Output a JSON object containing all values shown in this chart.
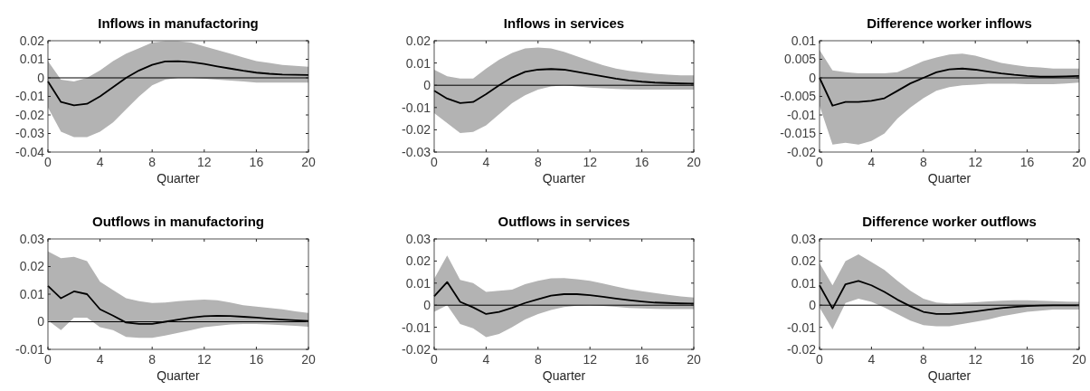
{
  "chart_data": [
    {
      "type": "line",
      "title": "Inflows in manufactoring",
      "xlabel": "Quarter",
      "x": [
        0,
        1,
        2,
        3,
        4,
        5,
        6,
        7,
        8,
        9,
        10,
        11,
        12,
        13,
        14,
        15,
        16,
        17,
        18,
        19,
        20
      ],
      "xlim": [
        0,
        20
      ],
      "xticks": [
        0,
        4,
        8,
        12,
        16,
        20
      ],
      "ylim": [
        -0.04,
        0.02
      ],
      "yticks": [
        -0.04,
        -0.03,
        -0.02,
        -0.01,
        0,
        0.01,
        0.02
      ],
      "grid": false,
      "ref_lines": [
        {
          "axis": "y",
          "value": 0,
          "color": "#000000"
        }
      ],
      "series": [
        {
          "color": "#000000",
          "values": [
            -0.002,
            -0.013,
            -0.0148,
            -0.014,
            -0.01,
            -0.005,
            0,
            0.004,
            0.007,
            0.0088,
            0.009,
            0.0085,
            0.0075,
            0.0062,
            0.005,
            0.0038,
            0.0028,
            0.0022,
            0.0018,
            0.0016,
            0.0015
          ],
          "lower": [
            -0.016,
            -0.029,
            -0.032,
            -0.032,
            -0.029,
            -0.024,
            -0.017,
            -0.01,
            -0.004,
            -0.001,
            0,
            0,
            -0.0005,
            -0.001,
            -0.0015,
            -0.002,
            -0.0025,
            -0.0025,
            -0.0025,
            -0.0025,
            -0.0025
          ],
          "upper": [
            0.009,
            -0.001,
            -0.002,
            0,
            0.004,
            0.009,
            0.013,
            0.016,
            0.019,
            0.0198,
            0.0198,
            0.019,
            0.017,
            0.015,
            0.013,
            0.011,
            0.009,
            0.008,
            0.007,
            0.0065,
            0.006
          ]
        }
      ]
    },
    {
      "type": "line",
      "title": "Inflows in services",
      "xlabel": "Quarter",
      "x": [
        0,
        1,
        2,
        3,
        4,
        5,
        6,
        7,
        8,
        9,
        10,
        11,
        12,
        13,
        14,
        15,
        16,
        17,
        18,
        19,
        20
      ],
      "xlim": [
        0,
        20
      ],
      "xticks": [
        0,
        4,
        8,
        12,
        16,
        20
      ],
      "ylim": [
        -0.03,
        0.02
      ],
      "yticks": [
        -0.03,
        -0.02,
        -0.01,
        0,
        0.01,
        0.02
      ],
      "grid": false,
      "ref_lines": [
        {
          "axis": "y",
          "value": 0,
          "color": "#000000"
        }
      ],
      "series": [
        {
          "color": "#000000",
          "values": [
            -0.0025,
            -0.006,
            -0.008,
            -0.0075,
            -0.004,
            0,
            0.0035,
            0.006,
            0.007,
            0.0073,
            0.007,
            0.006,
            0.005,
            0.004,
            0.003,
            0.0022,
            0.0016,
            0.0012,
            0.001,
            0.0008,
            0.0007
          ],
          "lower": [
            -0.0125,
            -0.017,
            -0.0215,
            -0.021,
            -0.018,
            -0.013,
            -0.008,
            -0.0045,
            -0.002,
            -0.0005,
            0,
            -0.0005,
            -0.001,
            -0.0013,
            -0.0016,
            -0.0018,
            -0.002,
            -0.002,
            -0.002,
            -0.002,
            -0.002
          ],
          "upper": [
            0.007,
            0.004,
            0.003,
            0.003,
            0.0075,
            0.0115,
            0.0145,
            0.0165,
            0.017,
            0.0165,
            0.015,
            0.013,
            0.011,
            0.009,
            0.0075,
            0.0065,
            0.0058,
            0.0052,
            0.0048,
            0.0045,
            0.0045
          ]
        }
      ]
    },
    {
      "type": "line",
      "title": "Difference worker inflows",
      "xlabel": "Quarter",
      "x": [
        0,
        1,
        2,
        3,
        4,
        5,
        6,
        7,
        8,
        9,
        10,
        11,
        12,
        13,
        14,
        15,
        16,
        17,
        18,
        19,
        20
      ],
      "xlim": [
        0,
        20
      ],
      "xticks": [
        0,
        4,
        8,
        12,
        16,
        20
      ],
      "ylim": [
        -0.02,
        0.01
      ],
      "yticks": [
        -0.02,
        -0.015,
        -0.01,
        -0.005,
        0,
        0.005,
        0.01
      ],
      "grid": false,
      "ref_lines": [
        {
          "axis": "y",
          "value": 0,
          "color": "#000000"
        }
      ],
      "series": [
        {
          "color": "#000000",
          "values": [
            0,
            -0.0075,
            -0.0065,
            -0.0065,
            -0.0062,
            -0.0055,
            -0.0035,
            -0.0015,
            0,
            0.0015,
            0.0023,
            0.0025,
            0.0022,
            0.0017,
            0.0012,
            0.0008,
            0.0005,
            0.0003,
            0.0003,
            0.0004,
            0.0005
          ],
          "lower": [
            -0.0075,
            -0.018,
            -0.0175,
            -0.018,
            -0.017,
            -0.015,
            -0.011,
            -0.008,
            -0.0055,
            -0.0035,
            -0.0025,
            -0.002,
            -0.0018,
            -0.0016,
            -0.0016,
            -0.0016,
            -0.0017,
            -0.0017,
            -0.0017,
            -0.0015,
            -0.0013
          ],
          "upper": [
            0.0075,
            0.002,
            0.0015,
            0.0012,
            0.0012,
            0.0012,
            0.0015,
            0.003,
            0.0045,
            0.0055,
            0.0063,
            0.0065,
            0.006,
            0.005,
            0.004,
            0.0035,
            0.003,
            0.0028,
            0.0025,
            0.0025,
            0.0025
          ]
        }
      ]
    },
    {
      "type": "line",
      "title": "Outflows in manufactoring",
      "xlabel": "Quarter",
      "x": [
        0,
        1,
        2,
        3,
        4,
        5,
        6,
        7,
        8,
        9,
        10,
        11,
        12,
        13,
        14,
        15,
        16,
        17,
        18,
        19,
        20
      ],
      "xlim": [
        0,
        20
      ],
      "xticks": [
        0,
        4,
        8,
        12,
        16,
        20
      ],
      "ylim": [
        -0.01,
        0.03
      ],
      "yticks": [
        -0.01,
        0,
        0.01,
        0.02,
        0.03
      ],
      "grid": false,
      "ref_lines": [
        {
          "axis": "y",
          "value": 0,
          "color": "#000000"
        }
      ],
      "series": [
        {
          "color": "#000000",
          "values": [
            0.013,
            0.0085,
            0.011,
            0.01,
            0.0045,
            0.0022,
            -0.0003,
            -0.0008,
            -0.0008,
            0,
            0.0008,
            0.0015,
            0.002,
            0.0022,
            0.0021,
            0.0018,
            0.0015,
            0.0011,
            0.0008,
            0.0005,
            0.0003
          ],
          "lower": [
            0.0005,
            -0.003,
            0.0015,
            0.0015,
            -0.002,
            -0.003,
            -0.0055,
            -0.0058,
            -0.0058,
            -0.005,
            -0.004,
            -0.003,
            -0.002,
            -0.0015,
            -0.001,
            -0.0008,
            -0.0008,
            -0.001,
            -0.0012,
            -0.0015,
            -0.0018
          ],
          "upper": [
            0.0255,
            0.023,
            0.0235,
            0.022,
            0.0145,
            0.0115,
            0.0085,
            0.0075,
            0.0068,
            0.007,
            0.0075,
            0.0078,
            0.008,
            0.0078,
            0.007,
            0.006,
            0.0055,
            0.005,
            0.0045,
            0.0038,
            0.0032
          ]
        }
      ]
    },
    {
      "type": "line",
      "title": "Outflows in services",
      "xlabel": "Quarter",
      "x": [
        0,
        1,
        2,
        3,
        4,
        5,
        6,
        7,
        8,
        9,
        10,
        11,
        12,
        13,
        14,
        15,
        16,
        17,
        18,
        19,
        20
      ],
      "xlim": [
        0,
        20
      ],
      "xticks": [
        0,
        4,
        8,
        12,
        16,
        20
      ],
      "ylim": [
        -0.02,
        0.03
      ],
      "yticks": [
        -0.02,
        -0.01,
        0,
        0.01,
        0.02,
        0.03
      ],
      "grid": false,
      "ref_lines": [
        {
          "axis": "y",
          "value": 0,
          "color": "#000000"
        }
      ],
      "series": [
        {
          "color": "#000000",
          "values": [
            0.004,
            0.0105,
            0.0015,
            -0.001,
            -0.004,
            -0.003,
            -0.0012,
            0.001,
            0.0027,
            0.0043,
            0.005,
            0.005,
            0.0045,
            0.0038,
            0.003,
            0.0023,
            0.0017,
            0.0012,
            0.001,
            0.0008,
            0.0007
          ],
          "lower": [
            -0.003,
            0,
            -0.0085,
            -0.0105,
            -0.0145,
            -0.013,
            -0.01,
            -0.0065,
            -0.004,
            -0.0022,
            -0.0008,
            -0.0002,
            0,
            -0.0003,
            -0.0007,
            -0.0012,
            -0.0015,
            -0.0017,
            -0.0018,
            -0.0018,
            -0.0018
          ],
          "upper": [
            0.012,
            0.0225,
            0.0115,
            0.01,
            0.006,
            0.0065,
            0.007,
            0.0095,
            0.011,
            0.0122,
            0.0123,
            0.0118,
            0.011,
            0.0098,
            0.0085,
            0.0073,
            0.0063,
            0.0055,
            0.0047,
            0.004,
            0.0035
          ]
        }
      ]
    },
    {
      "type": "line",
      "title": "Difference worker outflows",
      "xlabel": "Quarter",
      "x": [
        0,
        1,
        2,
        3,
        4,
        5,
        6,
        7,
        8,
        9,
        10,
        11,
        12,
        13,
        14,
        15,
        16,
        17,
        18,
        19,
        20
      ],
      "xlim": [
        0,
        20
      ],
      "xticks": [
        0,
        4,
        8,
        12,
        16,
        20
      ],
      "ylim": [
        -0.02,
        0.03
      ],
      "yticks": [
        -0.02,
        -0.01,
        0,
        0.01,
        0.02,
        0.03
      ],
      "grid": false,
      "ref_lines": [
        {
          "axis": "y",
          "value": 0,
          "color": "#000000"
        }
      ],
      "series": [
        {
          "color": "#000000",
          "values": [
            0.009,
            -0.0015,
            0.0095,
            0.011,
            0.009,
            0.006,
            0.0025,
            -0.0005,
            -0.003,
            -0.004,
            -0.004,
            -0.0035,
            -0.0028,
            -0.002,
            -0.0013,
            -0.0008,
            -0.0004,
            -0.0002,
            -0.0001,
            -0.0001,
            -0.0001
          ],
          "lower": [
            -0.001,
            -0.011,
            0.001,
            0.003,
            0.0015,
            -0.001,
            -0.004,
            -0.007,
            -0.009,
            -0.0095,
            -0.0095,
            -0.0085,
            -0.0075,
            -0.0065,
            -0.005,
            -0.004,
            -0.003,
            -0.0025,
            -0.002,
            -0.002,
            -0.002
          ],
          "upper": [
            0.019,
            0.009,
            0.02,
            0.023,
            0.0195,
            0.016,
            0.011,
            0.0065,
            0.003,
            0.0012,
            0.0008,
            0.001,
            0.0013,
            0.0017,
            0.002,
            0.0022,
            0.0022,
            0.002,
            0.0018,
            0.0016,
            0.0015
          ]
        }
      ]
    }
  ]
}
